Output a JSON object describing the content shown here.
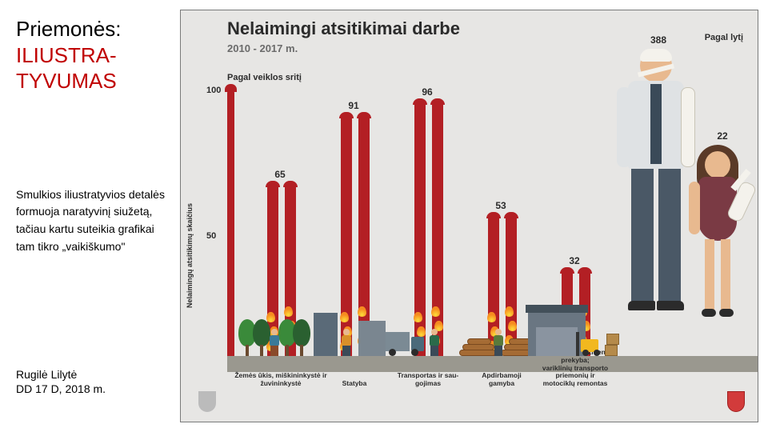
{
  "sidebar": {
    "title_plain": "Priemonės:\n",
    "title_accent": "ILIUSTRA-TYVUMAS",
    "body": "Smulkios iliustratyvios detalės formuoja naratyvinį siužetą, tačiau kartu suteikia grafikai tam tikro „vaikiškumo\"",
    "author": "Rugilė Lilytė",
    "meta": "DD 17 D, 2018 m."
  },
  "infographic": {
    "title": "Nelaimingi atsitikimai darbe",
    "subtitle": "2010 - 2017 m.",
    "left_label": "Pagal veiklos sritį",
    "right_label": "Pagal lytį",
    "yaxis_label": "Nelaimingų atsitikimų skaičius",
    "chart": {
      "type": "bar",
      "ymax": 100,
      "yticks": [
        100,
        50
      ],
      "bar_color": "#b31f24",
      "flame_colors": [
        "#fddc3a",
        "#f68b1f"
      ],
      "ground_color": "#9a988f",
      "background_color": "#e7e6e4",
      "categories": [
        {
          "label": "Žemės ūkis, miškininkystė ir\nžuvininkystė",
          "value": 65
        },
        {
          "label": "Statyba",
          "value": 91
        },
        {
          "label": "Transportas ir sau-\ngojimas",
          "value": 96
        },
        {
          "label": "Apdirbamoji\ngamyba",
          "value": 53
        },
        {
          "label": "Didmeninė ir mažmeninė prekyba;\nvariklinių transporto priemonių ir\nmotociklų remontas",
          "value": 32
        }
      ]
    },
    "gender": {
      "man_value": 388,
      "girl_value": 22,
      "skin": "#e8b98f",
      "man_shirt": "#dfe2e4",
      "man_pants": "#4a5866",
      "girl_dress": "#7a3a44",
      "girl_hair": "#5a3a28",
      "bandage": "#f4f2ec"
    }
  }
}
